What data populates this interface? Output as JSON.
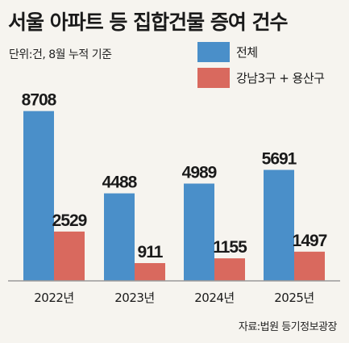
{
  "title": "서울 아파트 등 집합건물 증여 건수",
  "unit_note": "단위:건, 8월 누적 기준",
  "source": "자료:법원 등기정보광장",
  "colors": {
    "total": "#4a8fc9",
    "selected": "#d9695e",
    "axis": "#9a9a9a",
    "background": "#f6f4ef"
  },
  "chart_data": {
    "type": "bar",
    "categories": [
      "2022년",
      "2023년",
      "2024년",
      "2025년"
    ],
    "series": [
      {
        "name": "전체",
        "values": [
          8708,
          4488,
          4989,
          5691
        ],
        "color": "#4a8fc9"
      },
      {
        "name": "강남3구 + 용산구",
        "values": [
          2529,
          911,
          1155,
          1497
        ],
        "color": "#d9695e"
      }
    ],
    "ylim": [
      0,
      10100
    ],
    "grid": false,
    "legend_position": "top-right"
  }
}
